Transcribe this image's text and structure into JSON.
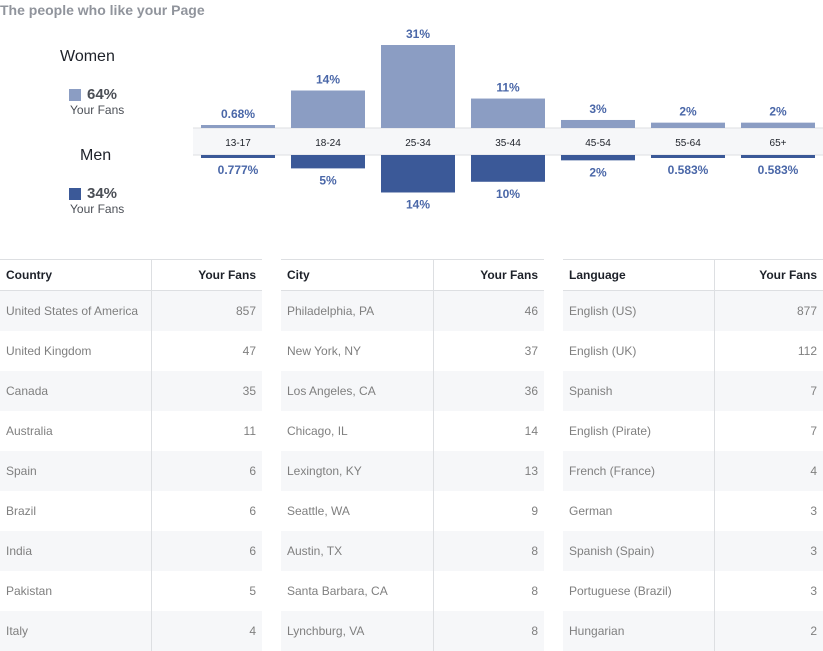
{
  "title": "The people who like your Page",
  "colors": {
    "women": "#8b9dc3",
    "men": "#3b5998",
    "label_text": "#4a67a8",
    "axis_bg": "#f6f7f9"
  },
  "legend": {
    "women": {
      "label": "Women",
      "percent": "64%",
      "sub": "Your Fans"
    },
    "men": {
      "label": "Men",
      "percent": "34%",
      "sub": "Your Fans"
    }
  },
  "chart_data": {
    "type": "bar",
    "categories": [
      "13-17",
      "18-24",
      "25-34",
      "35-44",
      "45-54",
      "55-64",
      "65+"
    ],
    "series": [
      {
        "name": "Women",
        "values": [
          0.68,
          14,
          31,
          11,
          3,
          2,
          2
        ],
        "labels": [
          "0.68%",
          "14%",
          "31%",
          "11%",
          "3%",
          "2%",
          "2%"
        ]
      },
      {
        "name": "Men",
        "values": [
          0.777,
          5,
          14,
          10,
          2,
          0.583,
          0.583
        ],
        "labels": [
          "0.777%",
          "5%",
          "14%",
          "10%",
          "2%",
          "0.583%",
          "0.583%"
        ]
      }
    ],
    "title": "",
    "xlabel": "",
    "ylabel": "",
    "ylim": [
      0,
      31
    ]
  },
  "tables": [
    {
      "headers": [
        "Country",
        "Your Fans"
      ],
      "rows": [
        [
          "United States of America",
          "857"
        ],
        [
          "United Kingdom",
          "47"
        ],
        [
          "Canada",
          "35"
        ],
        [
          "Australia",
          "11"
        ],
        [
          "Spain",
          "6"
        ],
        [
          "Brazil",
          "6"
        ],
        [
          "India",
          "6"
        ],
        [
          "Pakistan",
          "5"
        ],
        [
          "Italy",
          "4"
        ]
      ]
    },
    {
      "headers": [
        "City",
        "Your Fans"
      ],
      "rows": [
        [
          "Philadelphia, PA",
          "46"
        ],
        [
          "New York, NY",
          "37"
        ],
        [
          "Los Angeles, CA",
          "36"
        ],
        [
          "Chicago, IL",
          "14"
        ],
        [
          "Lexington, KY",
          "13"
        ],
        [
          "Seattle, WA",
          "9"
        ],
        [
          "Austin, TX",
          "8"
        ],
        [
          "Santa Barbara, CA",
          "8"
        ],
        [
          "Lynchburg, VA",
          "8"
        ]
      ]
    },
    {
      "headers": [
        "Language",
        "Your Fans"
      ],
      "rows": [
        [
          "English (US)",
          "877"
        ],
        [
          "English (UK)",
          "112"
        ],
        [
          "Spanish",
          "7"
        ],
        [
          "English (Pirate)",
          "7"
        ],
        [
          "French (France)",
          "4"
        ],
        [
          "German",
          "3"
        ],
        [
          "Spanish (Spain)",
          "3"
        ],
        [
          "Portuguese (Brazil)",
          "3"
        ],
        [
          "Hungarian",
          "2"
        ]
      ]
    }
  ]
}
